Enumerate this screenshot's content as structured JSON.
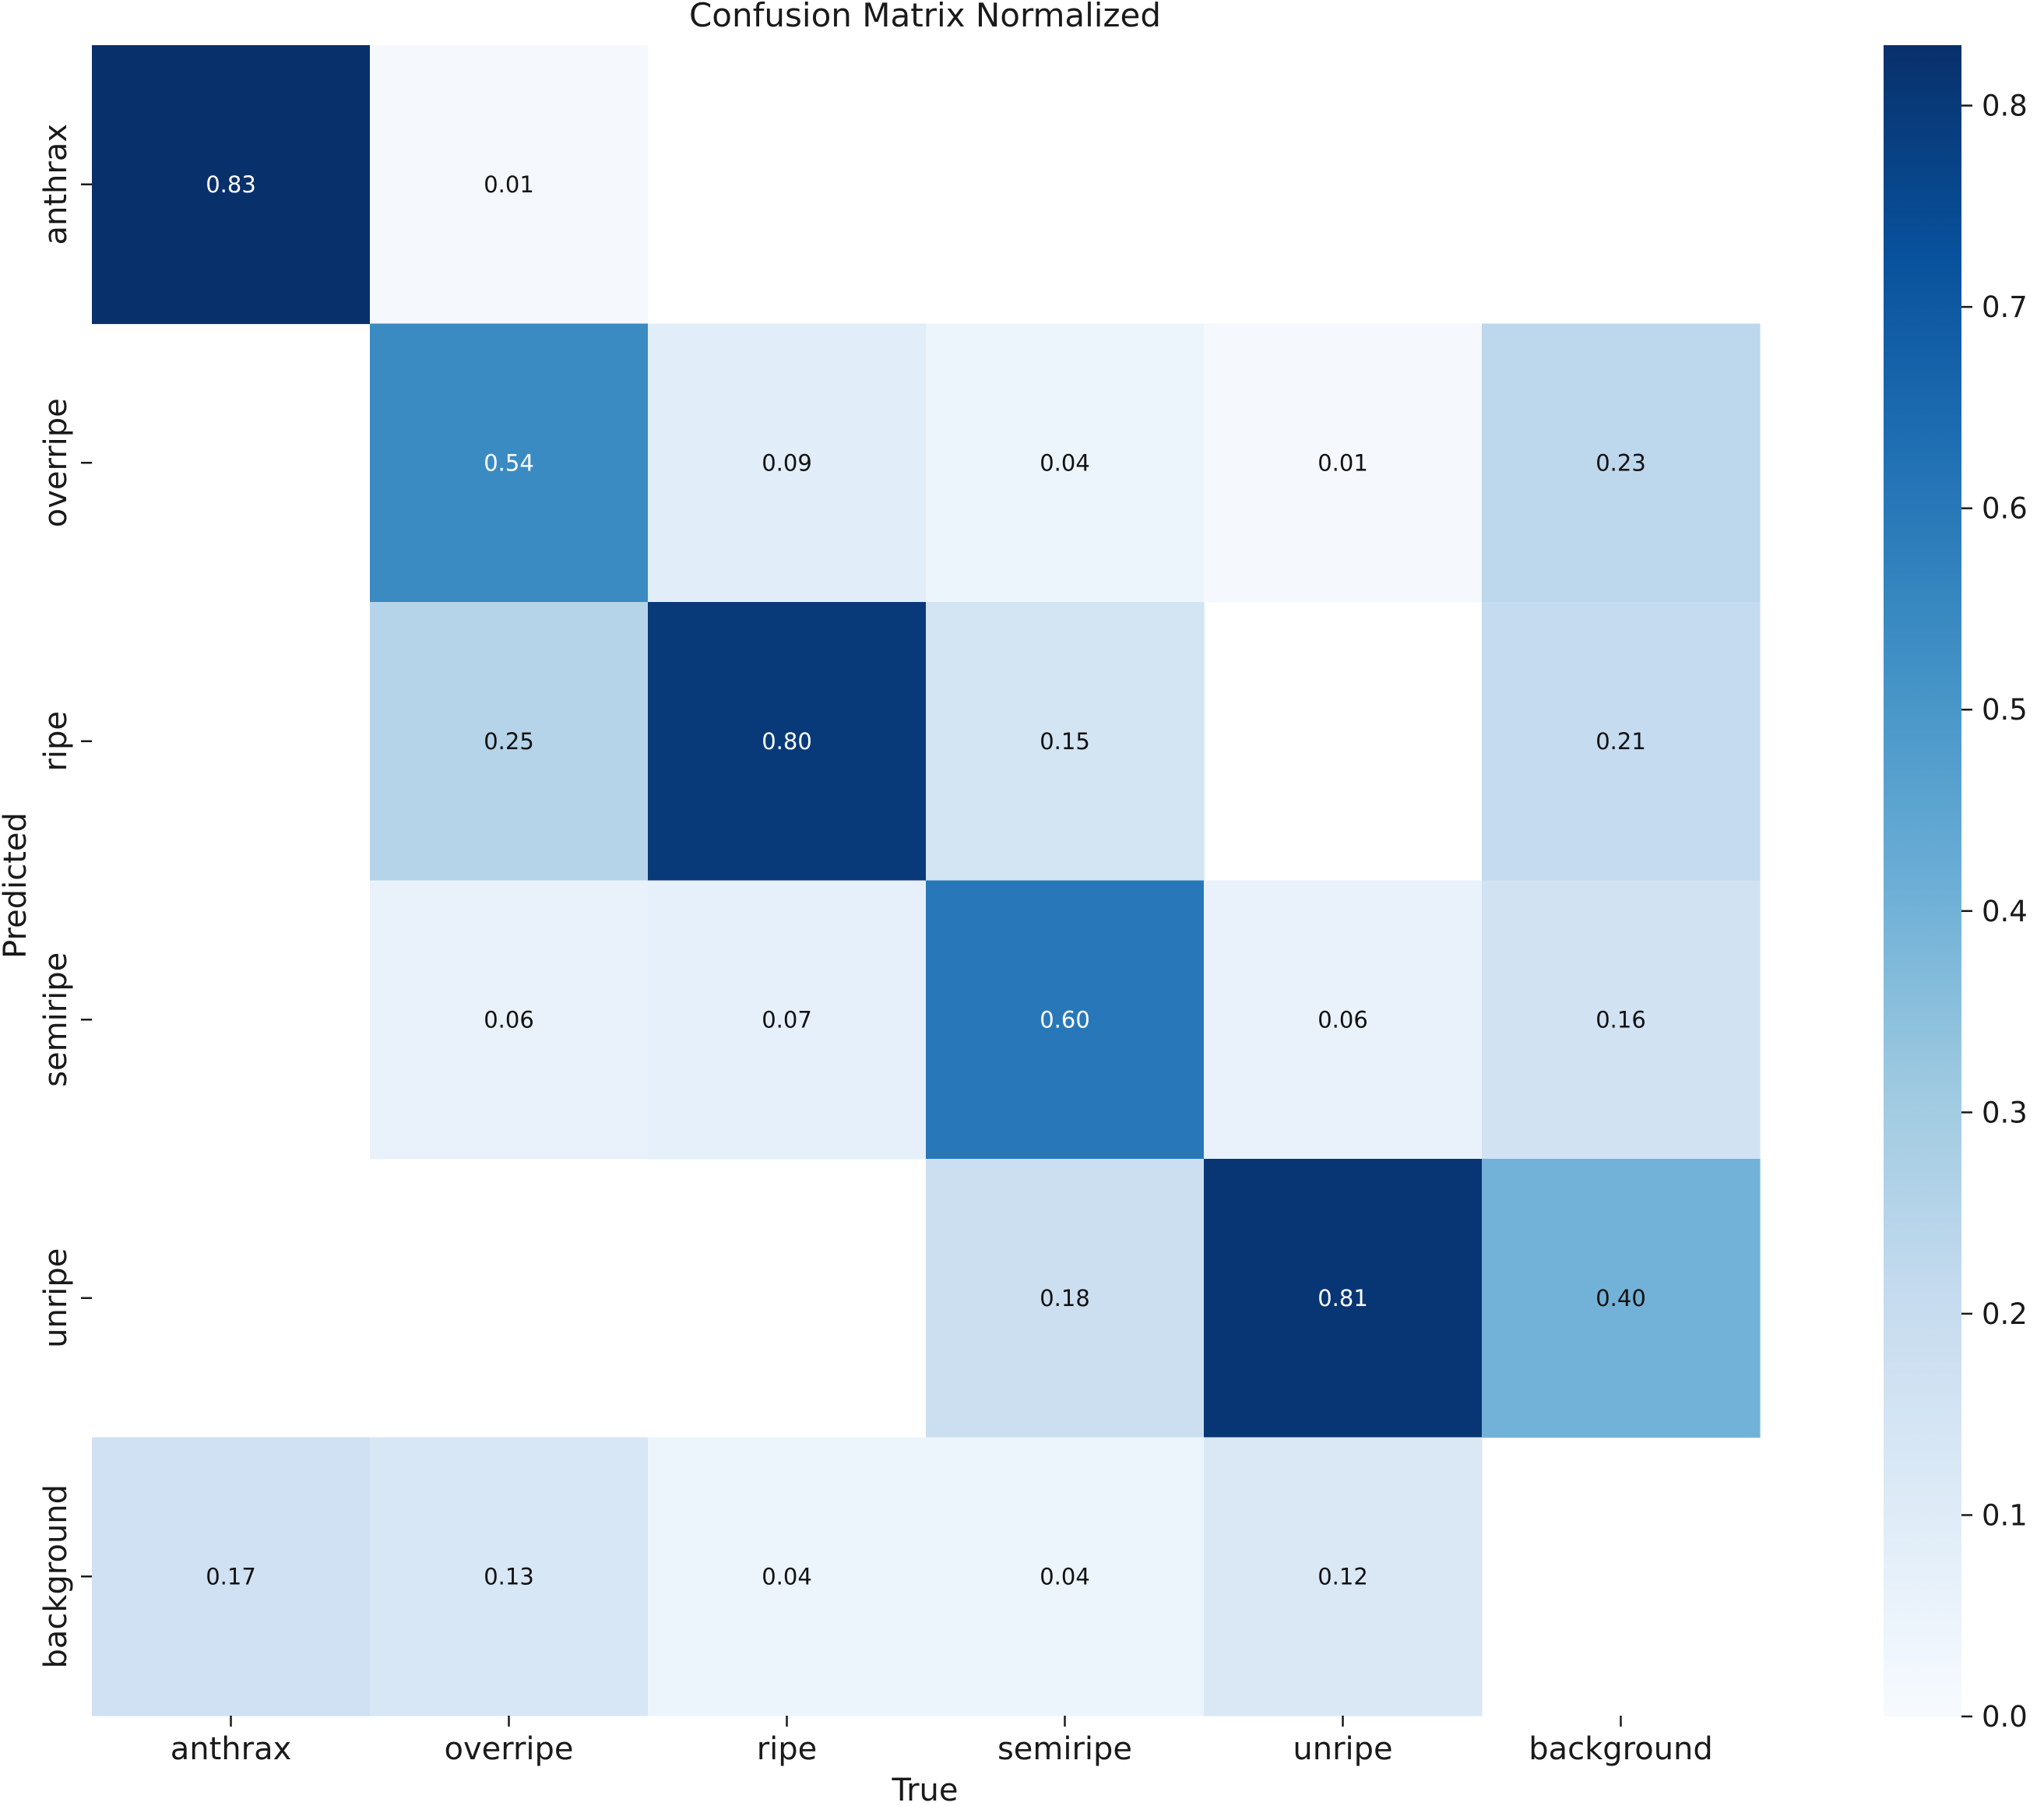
{
  "chart_data": {
    "type": "heatmap",
    "title": "Confusion Matrix Normalized",
    "xlabel": "True",
    "ylabel": "Predicted",
    "x_categories": [
      "anthrax",
      "overripe",
      "ripe",
      "semiripe",
      "unripe",
      "background"
    ],
    "y_categories": [
      "anthrax",
      "overripe",
      "ripe",
      "semiripe",
      "unripe",
      "background"
    ],
    "values": [
      [
        0.83,
        0.01,
        null,
        null,
        null,
        null
      ],
      [
        null,
        0.54,
        0.09,
        0.04,
        0.01,
        0.23
      ],
      [
        null,
        0.25,
        0.8,
        0.15,
        null,
        0.21
      ],
      [
        null,
        0.06,
        0.07,
        0.6,
        0.06,
        0.16
      ],
      [
        null,
        null,
        null,
        0.18,
        0.81,
        0.4
      ],
      [
        0.17,
        0.13,
        0.04,
        0.04,
        0.12,
        null
      ]
    ],
    "value_labels": [
      [
        "0.83",
        "0.01",
        "",
        "",
        "",
        ""
      ],
      [
        "",
        "0.54",
        "0.09",
        "0.04",
        "0.01",
        "0.23"
      ],
      [
        "",
        "0.25",
        "0.80",
        "0.15",
        "",
        "0.21"
      ],
      [
        "",
        "0.06",
        "0.07",
        "0.60",
        "0.06",
        "0.16"
      ],
      [
        "",
        "",
        "",
        "0.18",
        "0.81",
        "0.40"
      ],
      [
        "0.17",
        "0.13",
        "0.04",
        "0.04",
        "0.12",
        ""
      ]
    ],
    "colormap": "Blues",
    "colorbar": {
      "range": [
        0.0,
        0.83
      ],
      "ticks": [
        0.0,
        0.1,
        0.2,
        0.3,
        0.4,
        0.5,
        0.6,
        0.7,
        0.8
      ],
      "tick_labels": [
        "0.0",
        "0.1",
        "0.2",
        "0.3",
        "0.4",
        "0.5",
        "0.6",
        "0.7",
        "0.8"
      ]
    }
  }
}
